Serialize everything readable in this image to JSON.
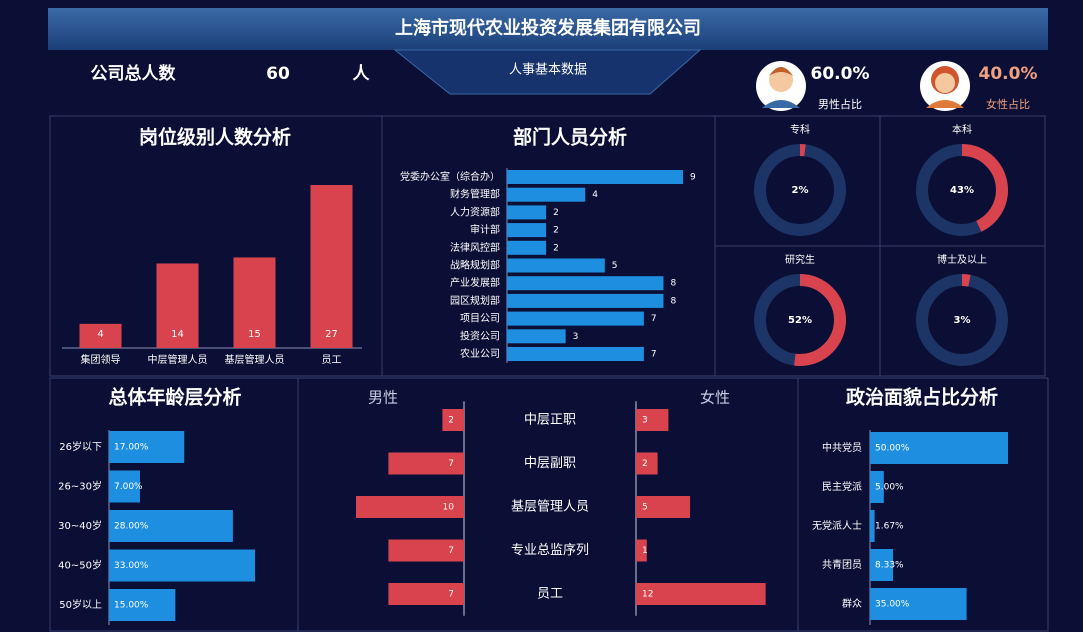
{
  "header": {
    "title": "上海市现代农业投资发展集团有限公司",
    "total_label": "公司总人数",
    "total_value": 60,
    "total_unit": "人",
    "subtitle": "人事基本数据",
    "male_ratio": "60.0%",
    "male_label": "男性占比",
    "female_ratio": "40.0%",
    "female_label": "女性占比"
  },
  "chart_data": [
    {
      "type": "bar",
      "title": "岗位级别人数分析",
      "categories": [
        "集团领导",
        "中层管理人员",
        "基层管理人员",
        "员工"
      ],
      "values": [
        4,
        14,
        15,
        27
      ],
      "color": "#d9434e"
    },
    {
      "type": "bar",
      "horizontal": true,
      "title": "部门人员分析",
      "categories": [
        "党委办公室（综合办）",
        "财务管理部",
        "人力资源部",
        "审计部",
        "法律风控部",
        "战略规划部",
        "产业发展部",
        "园区规划部",
        "项目公司",
        "投资公司",
        "农业公司"
      ],
      "values": [
        9,
        4,
        2,
        2,
        2,
        5,
        8,
        8,
        7,
        3,
        7
      ],
      "color": "#1e8fe0"
    },
    {
      "type": "donut",
      "categories": [
        "专科",
        "本科",
        "研究生",
        "博士及以上"
      ],
      "values": [
        2,
        43,
        52,
        3
      ],
      "value_labels": [
        "2%",
        "43%",
        "52%",
        "3%"
      ],
      "ylim": [
        0,
        100
      ],
      "color": "#d9434e",
      "track_color": "#1d3466"
    },
    {
      "type": "bar",
      "horizontal": true,
      "title": "总体年龄层分析",
      "categories": [
        "26岁以下",
        "26~30岁",
        "30~40岁",
        "40~50岁",
        "50岁以上"
      ],
      "values": [
        17,
        7,
        28,
        33,
        15
      ],
      "value_labels": [
        "17.00%",
        "7.00%",
        "28.00%",
        "33.00%",
        "15.00%"
      ],
      "color": "#1e8fe0"
    },
    {
      "type": "butterfly",
      "categories": [
        "中层正职",
        "中层副职",
        "基层管理人员",
        "专业总监序列",
        "员工"
      ],
      "series": [
        {
          "name": "男性",
          "color": "#d9434e",
          "values": [
            2,
            7,
            10,
            7,
            7
          ]
        },
        {
          "name": "女性",
          "color": "#d9434e",
          "values": [
            3,
            2,
            5,
            1,
            12
          ]
        }
      ]
    },
    {
      "type": "bar",
      "horizontal": true,
      "title": "政治面貌占比分析",
      "categories": [
        "中共党员",
        "民主党派",
        "无党派人士",
        "共青团员",
        "群众"
      ],
      "values": [
        50,
        5,
        1.67,
        8.33,
        35
      ],
      "value_labels": [
        "50.00%",
        "5.00%",
        "1.67%",
        "8.33%",
        "35.00%"
      ],
      "color": "#1e8fe0"
    }
  ]
}
